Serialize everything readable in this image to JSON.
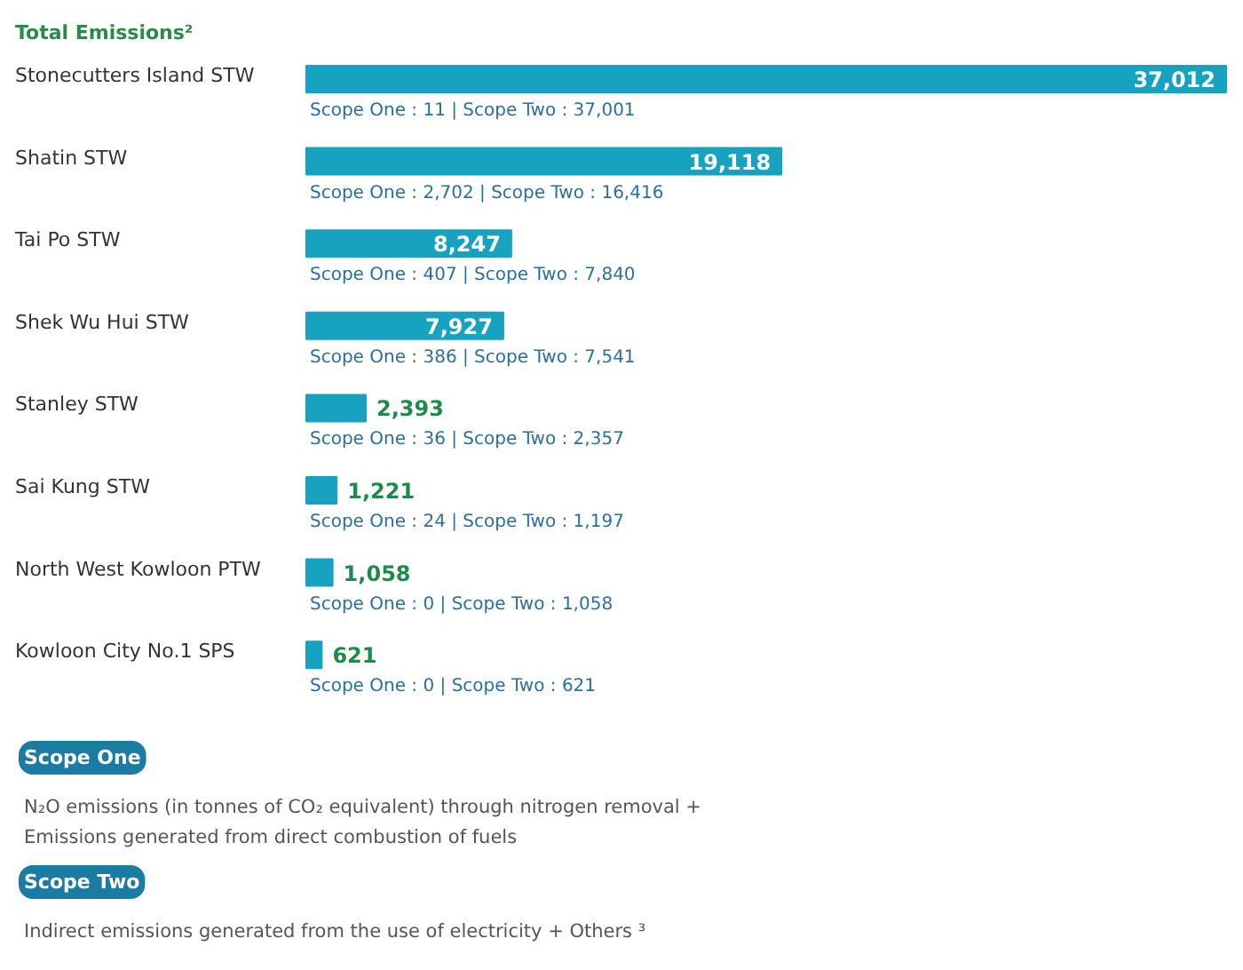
{
  "chart_data": {
    "type": "bar",
    "orientation": "horizontal",
    "title": "Total Emissions²",
    "categories": [
      "Stonecutters Island STW",
      "Shatin STW",
      "Tai Po STW",
      "Shek Wu Hui STW",
      "Stanley STW",
      "Sai Kung STW",
      "North West Kowloon PTW",
      "Kowloon City No.1 SPS"
    ],
    "values": [
      37012,
      19118,
      8247,
      7927,
      2393,
      1221,
      1058,
      621
    ],
    "color": "#17a2bf",
    "value_labels": [
      "37,012",
      "19,118",
      "8,247",
      "7,927",
      "2,393",
      "1,221",
      "1,058",
      "621"
    ],
    "annotations": [
      "Scope One : 11  |  Scope Two : 37,001",
      "Scope One : 2,702  |  Scope Two : 16,416",
      "Scope One : 407  |  Scope Two : 7,840",
      "Scope One : 386  |  Scope Two : 7,541",
      "Scope One : 36  |  Scope Two : 2,357",
      "Scope One : 24  |  Scope Two : 1,197",
      "Scope One : 0  |  Scope Two : 1,058",
      "Scope One : 0  |  Scope Two : 621",
      "Scope One",
      "N₂O emissions (in tonnes of CO₂ equivalent) through nitrogen removal + Emissions generated from direct combustion of fuels",
      "Scope Two",
      "Indirect emissions generated from the use of electricity + Others ³"
    ]
  }
}
